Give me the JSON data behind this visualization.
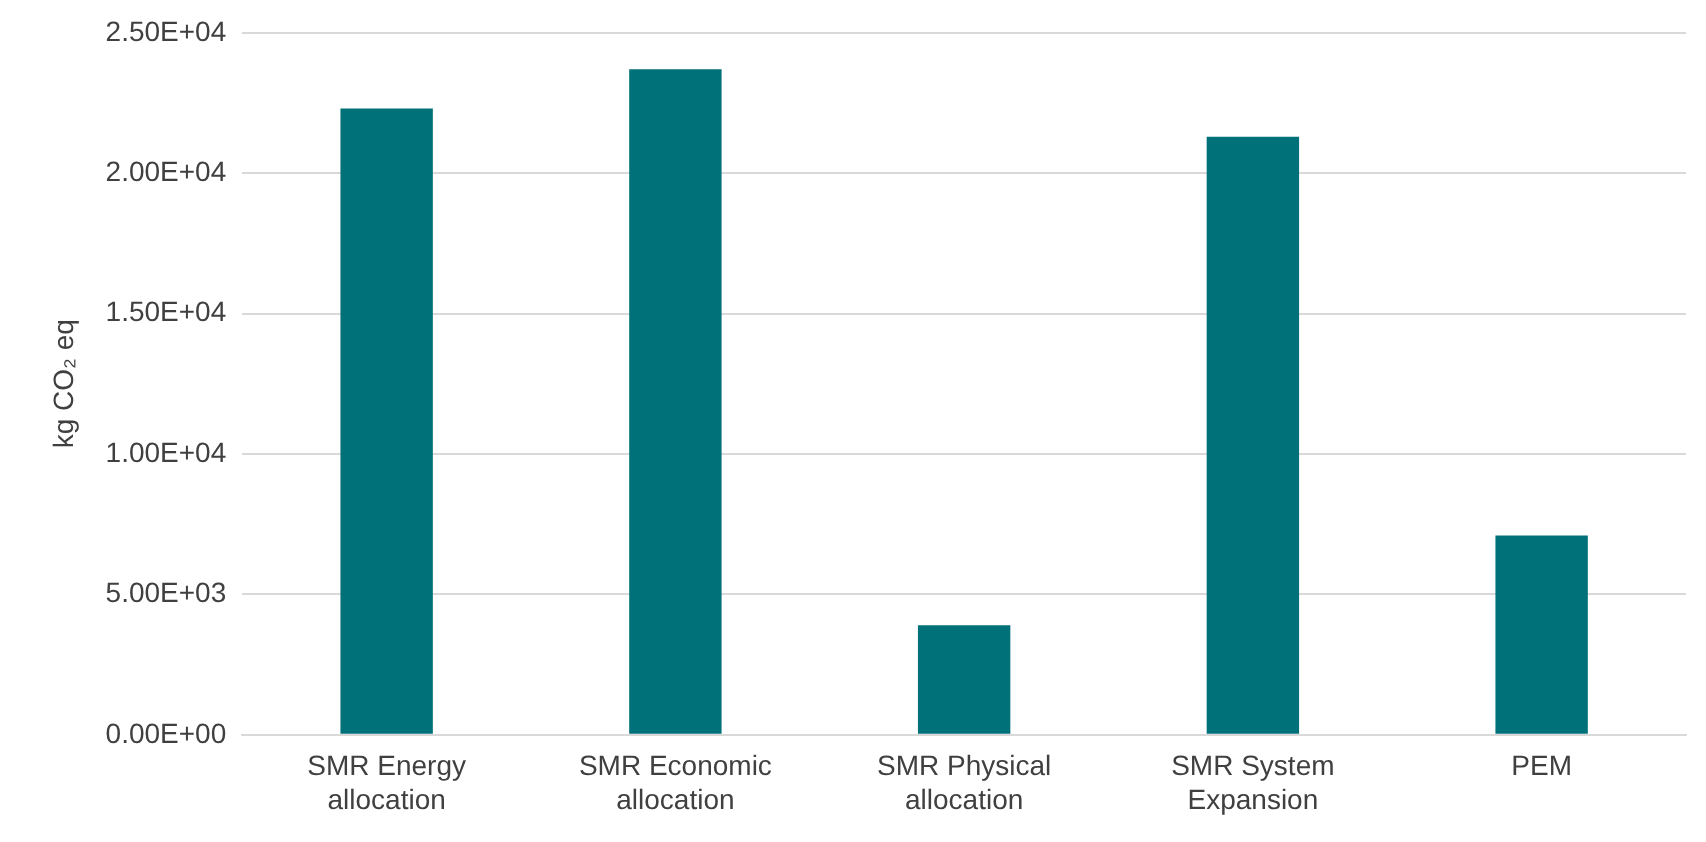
{
  "chart_data": {
    "type": "bar",
    "ylabel": "kg CO₂ eq",
    "categories": [
      "SMR Energy allocation",
      "SMR Economic allocation",
      "SMR Physical allocation",
      "SMR System Expansion",
      "PEM"
    ],
    "values": [
      22300,
      23700,
      3900,
      21300,
      7100
    ],
    "color": "#007079",
    "ylim": [
      0,
      25000
    ],
    "yticks": [
      {
        "value": 0,
        "label": "0.00E+00"
      },
      {
        "value": 5000,
        "label": "5.00E+03"
      },
      {
        "value": 10000,
        "label": "1.00E+04"
      },
      {
        "value": 15000,
        "label": "1.50E+04"
      },
      {
        "value": 20000,
        "label": "2.00E+04"
      },
      {
        "value": 25000,
        "label": "2.50E+04"
      }
    ],
    "grid": "y",
    "legend": false
  }
}
